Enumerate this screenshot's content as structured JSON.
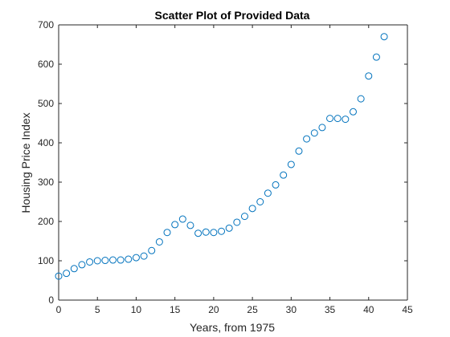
{
  "chart_data": {
    "type": "scatter",
    "title": "Scatter Plot of Provided Data",
    "xlabel": "Years, from 1975",
    "ylabel": "Housing Price Index",
    "xlim": [
      0,
      45
    ],
    "ylim": [
      0,
      700
    ],
    "xticks": [
      0,
      5,
      10,
      15,
      20,
      25,
      30,
      35,
      40,
      45
    ],
    "yticks": [
      0,
      100,
      200,
      300,
      400,
      500,
      600,
      700
    ],
    "grid": false,
    "legend": "none",
    "marker": "open-circle",
    "marker_color": "#0072BD",
    "x": [
      0,
      1,
      2,
      3,
      4,
      5,
      6,
      7,
      8,
      9,
      10,
      11,
      12,
      13,
      14,
      15,
      16,
      17,
      18,
      19,
      20,
      21,
      22,
      23,
      24,
      25,
      26,
      27,
      28,
      29,
      30,
      31,
      32,
      33,
      34,
      35,
      36,
      37,
      38,
      39,
      40,
      41,
      42
    ],
    "y": [
      61,
      68,
      80,
      90,
      97,
      100,
      101,
      102,
      102,
      104,
      108,
      112,
      126,
      148,
      172,
      192,
      206,
      190,
      170,
      173,
      172,
      175,
      183,
      198,
      213,
      233,
      250,
      272,
      293,
      318,
      345,
      379,
      410,
      425,
      439,
      462,
      462,
      460,
      479,
      512,
      570,
      618,
      670
    ]
  }
}
